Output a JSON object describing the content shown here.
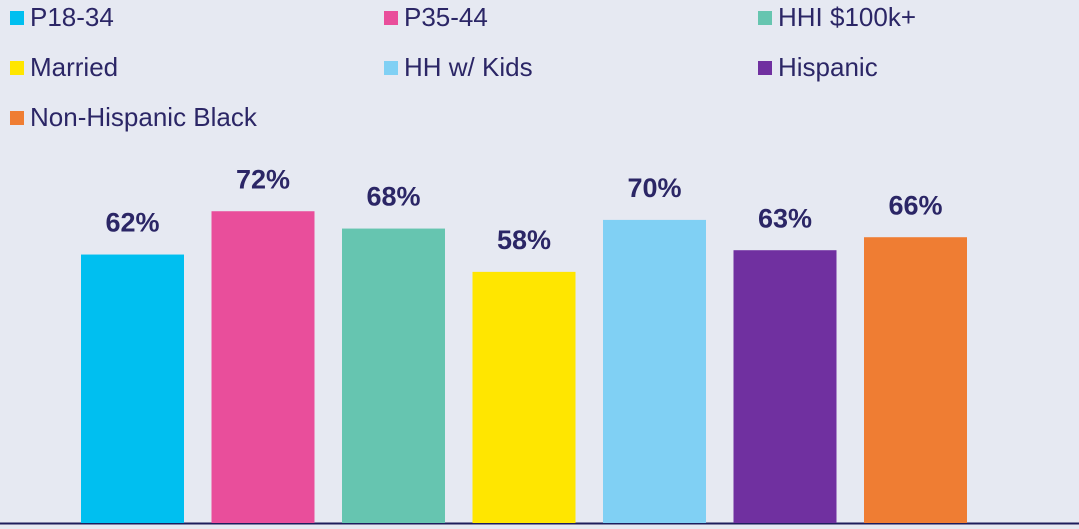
{
  "chart_data": {
    "type": "bar",
    "series": [
      {
        "name": "P18-34",
        "color": "#00bff0",
        "values": [
          62
        ],
        "value_labels": [
          "62%"
        ]
      },
      {
        "name": "P35-44",
        "color": "#e94e9b",
        "values": [
          72
        ],
        "value_labels": [
          "72%"
        ]
      },
      {
        "name": "HHI $100k+",
        "color": "#66c5b0",
        "values": [
          68
        ],
        "value_labels": [
          "68%"
        ]
      },
      {
        "name": "Married",
        "color": "#ffe600",
        "values": [
          58
        ],
        "value_labels": [
          "58%"
        ]
      },
      {
        "name": "HH w/ Kids",
        "color": "#80d0f4",
        "values": [
          70
        ],
        "value_labels": [
          "70%"
        ]
      },
      {
        "name": "Hispanic",
        "color": "#7030a0",
        "values": [
          63
        ],
        "value_labels": [
          "63%"
        ]
      },
      {
        "name": "Non-Hispanic Black",
        "color": "#ef7d33",
        "values": [
          66
        ],
        "value_labels": [
          "66%"
        ]
      }
    ],
    "ylim": [
      0,
      100
    ],
    "legend": "top"
  }
}
